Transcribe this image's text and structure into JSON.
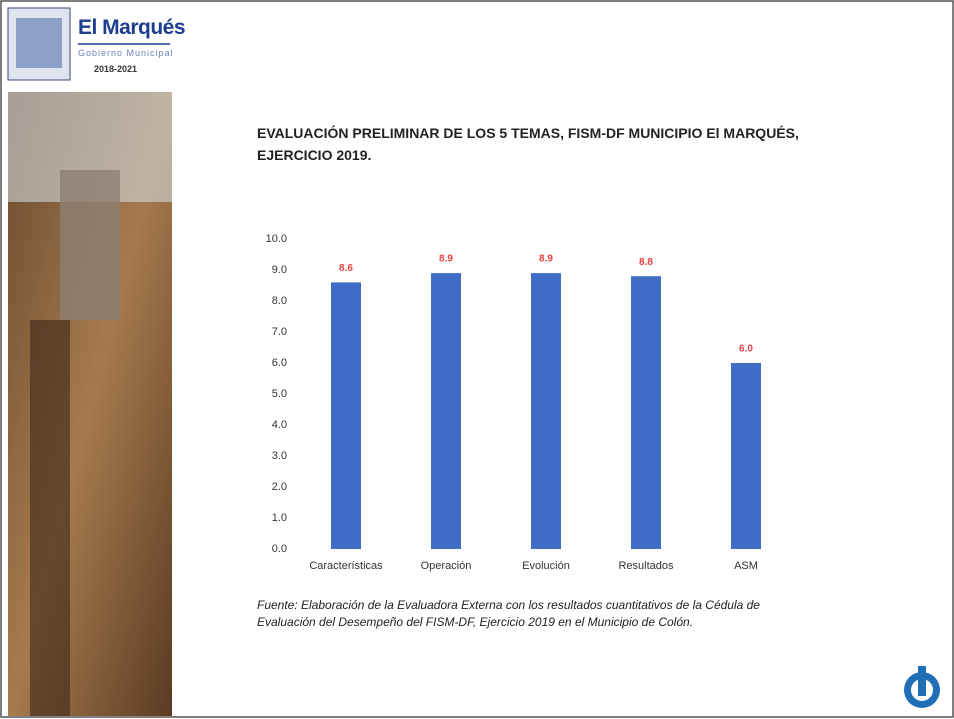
{
  "header": {
    "brand": "El Marqués",
    "subtitle": "Gobierno Municipal",
    "period": "2018-2021"
  },
  "chart_data": {
    "type": "bar",
    "title": "EVALUACIÓN PRELIMINAR DE LOS 5 TEMAS, FISM-DF MUNICIPIO El MARQUÉS, EJERCICIO 2019.",
    "categories": [
      "Características",
      "Operación",
      "Evolución",
      "Resultados",
      "ASM"
    ],
    "values": [
      8.6,
      8.9,
      8.9,
      8.8,
      6.0
    ],
    "value_labels": [
      "8.6",
      "8.9",
      "8.9",
      "8.8",
      "6.0"
    ],
    "color": "#3f6dc6",
    "label_color": "#e8413f",
    "ylim": [
      0,
      10
    ],
    "yticks": [
      {
        "value": 0,
        "label": "0.0"
      },
      {
        "value": 1,
        "label": "1.0"
      },
      {
        "value": 2,
        "label": "2.0"
      },
      {
        "value": 3,
        "label": "3.0"
      },
      {
        "value": 4,
        "label": "4.0"
      },
      {
        "value": 5,
        "label": "5.0"
      },
      {
        "value": 6,
        "label": "6.0"
      },
      {
        "value": 7,
        "label": "7.0"
      },
      {
        "value": 8,
        "label": "8.0"
      },
      {
        "value": 9,
        "label": "9.0"
      },
      {
        "value": 10,
        "label": "10.0"
      }
    ],
    "grid": false
  },
  "source": "Fuente: Elaboración de la Evaluadora Externa con los resultados cuantitativos de la Cédula de Evaluación del Desempeño del FISM-DF, Ejercicio 2019 en el Municipio de Colón."
}
